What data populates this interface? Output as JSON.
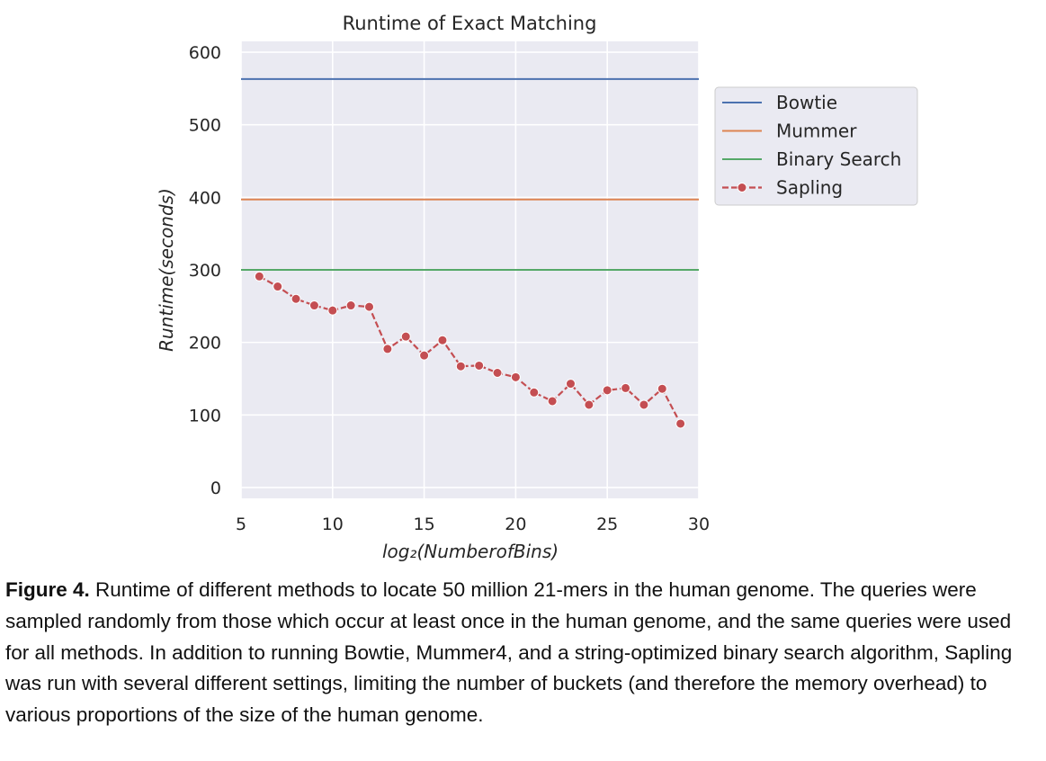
{
  "chart_data": {
    "type": "line",
    "title": "Runtime of Exact Matching",
    "xlabel": "log₂(NumberofBins)",
    "ylabel": "Runtime(seconds)",
    "xlim": [
      5,
      30
    ],
    "ylim": [
      -15,
      615
    ],
    "xticks": [
      "5",
      "10",
      "15",
      "20",
      "25",
      "30"
    ],
    "yticks": [
      "0",
      "100",
      "200",
      "300",
      "400",
      "500",
      "600"
    ],
    "grid": true,
    "legend_position": "outside-right",
    "series": [
      {
        "name": "Bowtie",
        "type": "hline",
        "value": 563,
        "color": "#4c72b0"
      },
      {
        "name": "Mummer",
        "type": "hline",
        "value": 397,
        "color": "#dd8452"
      },
      {
        "name": "Binary Search",
        "type": "hline",
        "value": 300,
        "color": "#55a868"
      },
      {
        "name": "Sapling",
        "type": "line-marker",
        "color": "#c44e52",
        "x": [
          6,
          7,
          8,
          9,
          10,
          11,
          12,
          13,
          14,
          15,
          16,
          17,
          18,
          19,
          20,
          21,
          22,
          23,
          24,
          25,
          26,
          27,
          28,
          29
        ],
        "y": [
          291,
          277,
          260,
          251,
          244,
          251,
          249,
          191,
          208,
          182,
          203,
          167,
          168,
          158,
          152,
          131,
          119,
          143,
          114,
          134,
          137,
          114,
          136,
          88
        ]
      }
    ]
  },
  "caption": {
    "label": "Figure 4.",
    "text": " Runtime of different methods to locate 50 million 21-mers in the human genome.  The queries were sampled randomly from those which occur at least once in the human genome, and the same queries were used for all methods.  In addition to running Bowtie, Mummer4, and a string-optimized binary search algorithm, Sapling was run with several different settings, limiting the number of buckets (and therefore the memory overhead) to various proportions of the size of the human genome."
  }
}
